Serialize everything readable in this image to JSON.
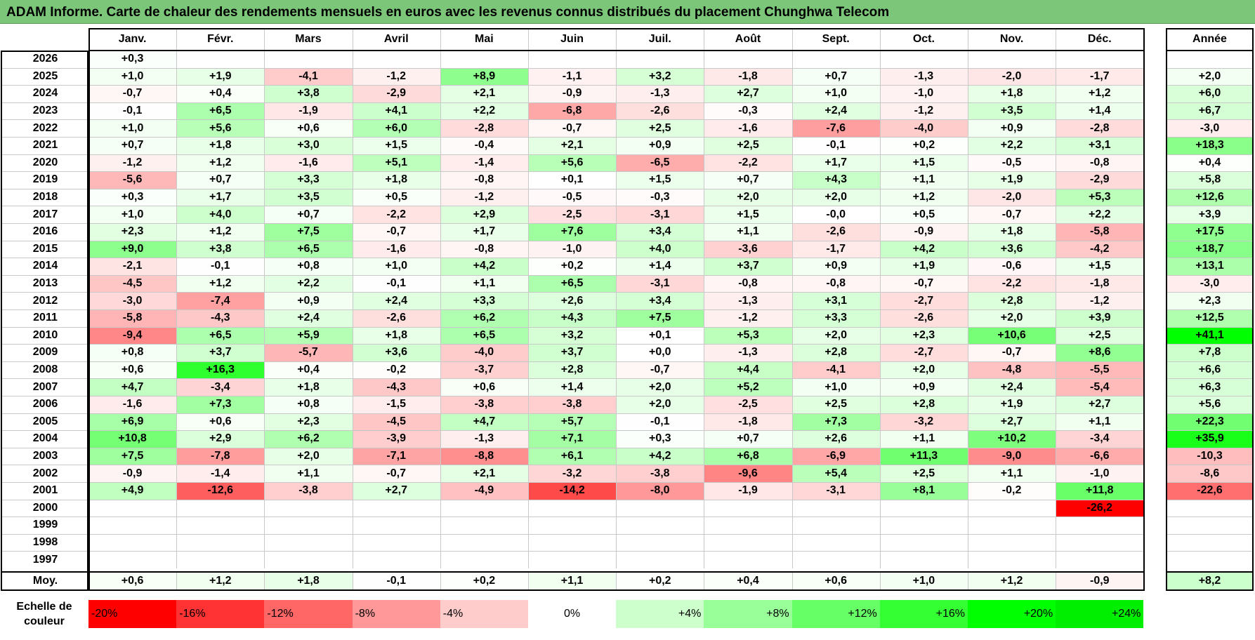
{
  "title": "ADAM Informe. Carte de chaleur des rendements mensuels en euros avec les revenus connus distribués du placement Chunghwa Telecom",
  "chart_data": {
    "type": "heatmap",
    "title": "ADAM Informe. Carte de chaleur des rendements mensuels en euros avec les revenus connus distribués du placement Chunghwa Telecom",
    "months": [
      "Janv.",
      "Févr.",
      "Mars",
      "Avril",
      "Mai",
      "Juin",
      "Juil.",
      "Août",
      "Sept.",
      "Oct.",
      "Nov.",
      "Déc."
    ],
    "year_header": "Année",
    "rows": [
      {
        "year": "2026",
        "months": [
          "+0,3",
          null,
          null,
          null,
          null,
          null,
          null,
          null,
          null,
          null,
          null,
          null
        ],
        "annual": null
      },
      {
        "year": "2025",
        "months": [
          "+1,0",
          "+1,9",
          "-4,1",
          "-1,2",
          "+8,9",
          "-1,1",
          "+3,2",
          "-1,8",
          "+0,7",
          "-1,3",
          "-2,0",
          "-1,7"
        ],
        "annual": "+2,0"
      },
      {
        "year": "2024",
        "months": [
          "-0,7",
          "+0,4",
          "+3,8",
          "-2,9",
          "+2,1",
          "-0,9",
          "-1,3",
          "+2,7",
          "+1,0",
          "-1,0",
          "+1,8",
          "+1,2"
        ],
        "annual": "+6,0"
      },
      {
        "year": "2023",
        "months": [
          "-0,1",
          "+6,5",
          "-1,9",
          "+4,1",
          "+2,2",
          "-6,8",
          "-2,6",
          "-0,3",
          "+2,4",
          "-1,2",
          "+3,5",
          "+1,4"
        ],
        "annual": "+6,7"
      },
      {
        "year": "2022",
        "months": [
          "+1,0",
          "+5,6",
          "+0,6",
          "+6,0",
          "-2,8",
          "-0,7",
          "+2,5",
          "-1,6",
          "-7,6",
          "-4,0",
          "+0,9",
          "-2,8"
        ],
        "annual": "-3,0"
      },
      {
        "year": "2021",
        "months": [
          "+0,7",
          "+1,8",
          "+3,0",
          "+1,5",
          "-0,4",
          "+2,1",
          "+0,9",
          "+2,5",
          "-0,1",
          "+0,2",
          "+2,2",
          "+3,1"
        ],
        "annual": "+18,3"
      },
      {
        "year": "2020",
        "months": [
          "-1,2",
          "+1,2",
          "-1,6",
          "+5,1",
          "-1,4",
          "+5,6",
          "-6,5",
          "-2,2",
          "+1,7",
          "+1,5",
          "-0,5",
          "-0,8"
        ],
        "annual": "+0,4"
      },
      {
        "year": "2019",
        "months": [
          "-5,6",
          "+0,7",
          "+3,3",
          "+1,8",
          "-0,8",
          "+0,1",
          "+1,5",
          "+0,7",
          "+4,3",
          "+1,1",
          "+1,9",
          "-2,9"
        ],
        "annual": "+5,8"
      },
      {
        "year": "2018",
        "months": [
          "+0,3",
          "+1,7",
          "+3,5",
          "+0,5",
          "-1,2",
          "-0,5",
          "-0,3",
          "+2,0",
          "+2,0",
          "+1,2",
          "-2,0",
          "+5,3"
        ],
        "annual": "+12,6"
      },
      {
        "year": "2017",
        "months": [
          "+1,0",
          "+4,0",
          "+0,7",
          "-2,2",
          "+2,9",
          "-2,5",
          "-3,1",
          "+1,5",
          "-0,0",
          "+0,5",
          "-0,7",
          "+2,2"
        ],
        "annual": "+3,9"
      },
      {
        "year": "2016",
        "months": [
          "+2,3",
          "+1,2",
          "+7,5",
          "-0,7",
          "+1,7",
          "+7,6",
          "+3,4",
          "+1,1",
          "-2,6",
          "-0,9",
          "+1,8",
          "-5,8"
        ],
        "annual": "+17,5"
      },
      {
        "year": "2015",
        "months": [
          "+9,0",
          "+3,8",
          "+6,5",
          "-1,6",
          "-0,8",
          "-1,0",
          "+4,0",
          "-3,6",
          "-1,7",
          "+4,2",
          "+3,6",
          "-4,2"
        ],
        "annual": "+18,7"
      },
      {
        "year": "2014",
        "months": [
          "-2,1",
          "-0,1",
          "+0,8",
          "+1,0",
          "+4,2",
          "+0,2",
          "+1,4",
          "+3,7",
          "+0,9",
          "+1,9",
          "-0,6",
          "+1,5"
        ],
        "annual": "+13,1"
      },
      {
        "year": "2013",
        "months": [
          "-4,5",
          "+1,2",
          "+2,2",
          "-0,1",
          "+1,1",
          "+6,5",
          "-3,1",
          "-0,8",
          "-0,8",
          "-0,7",
          "-2,2",
          "-1,8"
        ],
        "annual": "-3,0"
      },
      {
        "year": "2012",
        "months": [
          "-3,0",
          "-7,4",
          "+0,9",
          "+2,4",
          "+3,3",
          "+2,6",
          "+3,4",
          "-1,3",
          "+3,1",
          "-2,7",
          "+2,8",
          "-1,2"
        ],
        "annual": "+2,3"
      },
      {
        "year": "2011",
        "months": [
          "-5,8",
          "-4,3",
          "+2,4",
          "-2,6",
          "+6,2",
          "+4,3",
          "+7,5",
          "-1,2",
          "+3,3",
          "-2,6",
          "+2,0",
          "+3,9"
        ],
        "annual": "+12,5"
      },
      {
        "year": "2010",
        "months": [
          "-9,4",
          "+6,5",
          "+5,9",
          "+1,8",
          "+6,5",
          "+3,2",
          "+0,1",
          "+5,3",
          "+2,0",
          "+2,3",
          "+10,6",
          "+2,5"
        ],
        "annual": "+41,1"
      },
      {
        "year": "2009",
        "months": [
          "+0,8",
          "+3,7",
          "-5,7",
          "+3,6",
          "-4,0",
          "+3,7",
          "+0,0",
          "-1,3",
          "+2,8",
          "-2,7",
          "-0,7",
          "+8,6"
        ],
        "annual": "+7,8"
      },
      {
        "year": "2008",
        "months": [
          "+0,6",
          "+16,3",
          "+0,4",
          "-0,2",
          "-3,7",
          "+2,8",
          "-0,7",
          "+4,4",
          "-4,1",
          "+2,0",
          "-4,8",
          "-5,5"
        ],
        "annual": "+6,6"
      },
      {
        "year": "2007",
        "months": [
          "+4,7",
          "-3,4",
          "+1,8",
          "-4,3",
          "+0,6",
          "+1,4",
          "+2,0",
          "+5,2",
          "+1,0",
          "+0,9",
          "+2,4",
          "-5,4"
        ],
        "annual": "+6,3"
      },
      {
        "year": "2006",
        "months": [
          "-1,6",
          "+7,3",
          "+0,8",
          "-1,5",
          "-3,8",
          "-3,8",
          "+2,0",
          "-2,5",
          "+2,5",
          "+2,8",
          "+1,9",
          "+2,7"
        ],
        "annual": "+5,6"
      },
      {
        "year": "2005",
        "months": [
          "+6,9",
          "+0,6",
          "+2,3",
          "-4,5",
          "+4,7",
          "+5,7",
          "-0,1",
          "-1,8",
          "+7,3",
          "-3,2",
          "+2,7",
          "+1,1"
        ],
        "annual": "+22,3"
      },
      {
        "year": "2004",
        "months": [
          "+10,8",
          "+2,9",
          "+6,2",
          "-3,9",
          "-1,3",
          "+7,1",
          "+0,3",
          "+0,7",
          "+2,6",
          "+1,1",
          "+10,2",
          "-3,4"
        ],
        "annual": "+35,9"
      },
      {
        "year": "2003",
        "months": [
          "+7,5",
          "-7,8",
          "+2,0",
          "-7,1",
          "-8,8",
          "+6,1",
          "+4,2",
          "+6,8",
          "-6,9",
          "+11,3",
          "-9,0",
          "-6,6"
        ],
        "annual": "-10,3"
      },
      {
        "year": "2002",
        "months": [
          "-0,9",
          "-1,4",
          "+1,1",
          "-0,7",
          "+2,1",
          "-3,2",
          "-3,8",
          "-9,6",
          "+5,4",
          "+2,5",
          "+1,1",
          "-1,0"
        ],
        "annual": "-8,6"
      },
      {
        "year": "2001",
        "months": [
          "+4,9",
          "-12,6",
          "-3,8",
          "+2,7",
          "-4,9",
          "-14,2",
          "-8,0",
          "-1,9",
          "-3,1",
          "+8,1",
          "-0,2",
          "+11,8"
        ],
        "annual": "-22,6"
      },
      {
        "year": "2000",
        "months": [
          null,
          null,
          null,
          null,
          null,
          null,
          null,
          null,
          null,
          null,
          null,
          "-26,2"
        ],
        "annual": null
      },
      {
        "year": "1999",
        "months": [
          null,
          null,
          null,
          null,
          null,
          null,
          null,
          null,
          null,
          null,
          null,
          null
        ],
        "annual": null
      },
      {
        "year": "1998",
        "months": [
          null,
          null,
          null,
          null,
          null,
          null,
          null,
          null,
          null,
          null,
          null,
          null
        ],
        "annual": null
      },
      {
        "year": "1997",
        "months": [
          null,
          null,
          null,
          null,
          null,
          null,
          null,
          null,
          null,
          null,
          null,
          null
        ],
        "annual": null
      }
    ],
    "average": {
      "label": "Moy.",
      "months": [
        "+0,6",
        "+1,2",
        "+1,8",
        "-0,1",
        "+0,2",
        "+1,1",
        "+0,2",
        "+0,4",
        "+0,6",
        "+1,0",
        "+1,2",
        "-0,9"
      ],
      "annual": "+8,2"
    },
    "scale": {
      "label": "Echelle de couleur",
      "stops": [
        {
          "label": "-20%",
          "value": -20,
          "color": "#ff0000"
        },
        {
          "label": "-16%",
          "value": -16,
          "color": "#ff3333"
        },
        {
          "label": "-12%",
          "value": -12,
          "color": "#ff6666"
        },
        {
          "label": "-8%",
          "value": -8,
          "color": "#ff9999"
        },
        {
          "label": "-4%",
          "value": -4,
          "color": "#ffcccc"
        },
        {
          "label": "0%",
          "value": 0,
          "color": "#ffffff"
        },
        {
          "label": "+4%",
          "value": 4,
          "color": "#ccffcc"
        },
        {
          "label": "+8%",
          "value": 8,
          "color": "#99ff99"
        },
        {
          "label": "+12%",
          "value": 12,
          "color": "#66ff66"
        },
        {
          "label": "+16%",
          "value": 16,
          "color": "#33ff33"
        },
        {
          "label": "+20%",
          "value": 20,
          "color": "#00ff00"
        },
        {
          "label": "+24%",
          "value": 24,
          "color": "#00ee00"
        }
      ]
    }
  },
  "colors": {
    "title_bg": "#7cc67a",
    "negative": "#ff0000",
    "positive": "#00ff00",
    "empty": "#ffffff"
  }
}
